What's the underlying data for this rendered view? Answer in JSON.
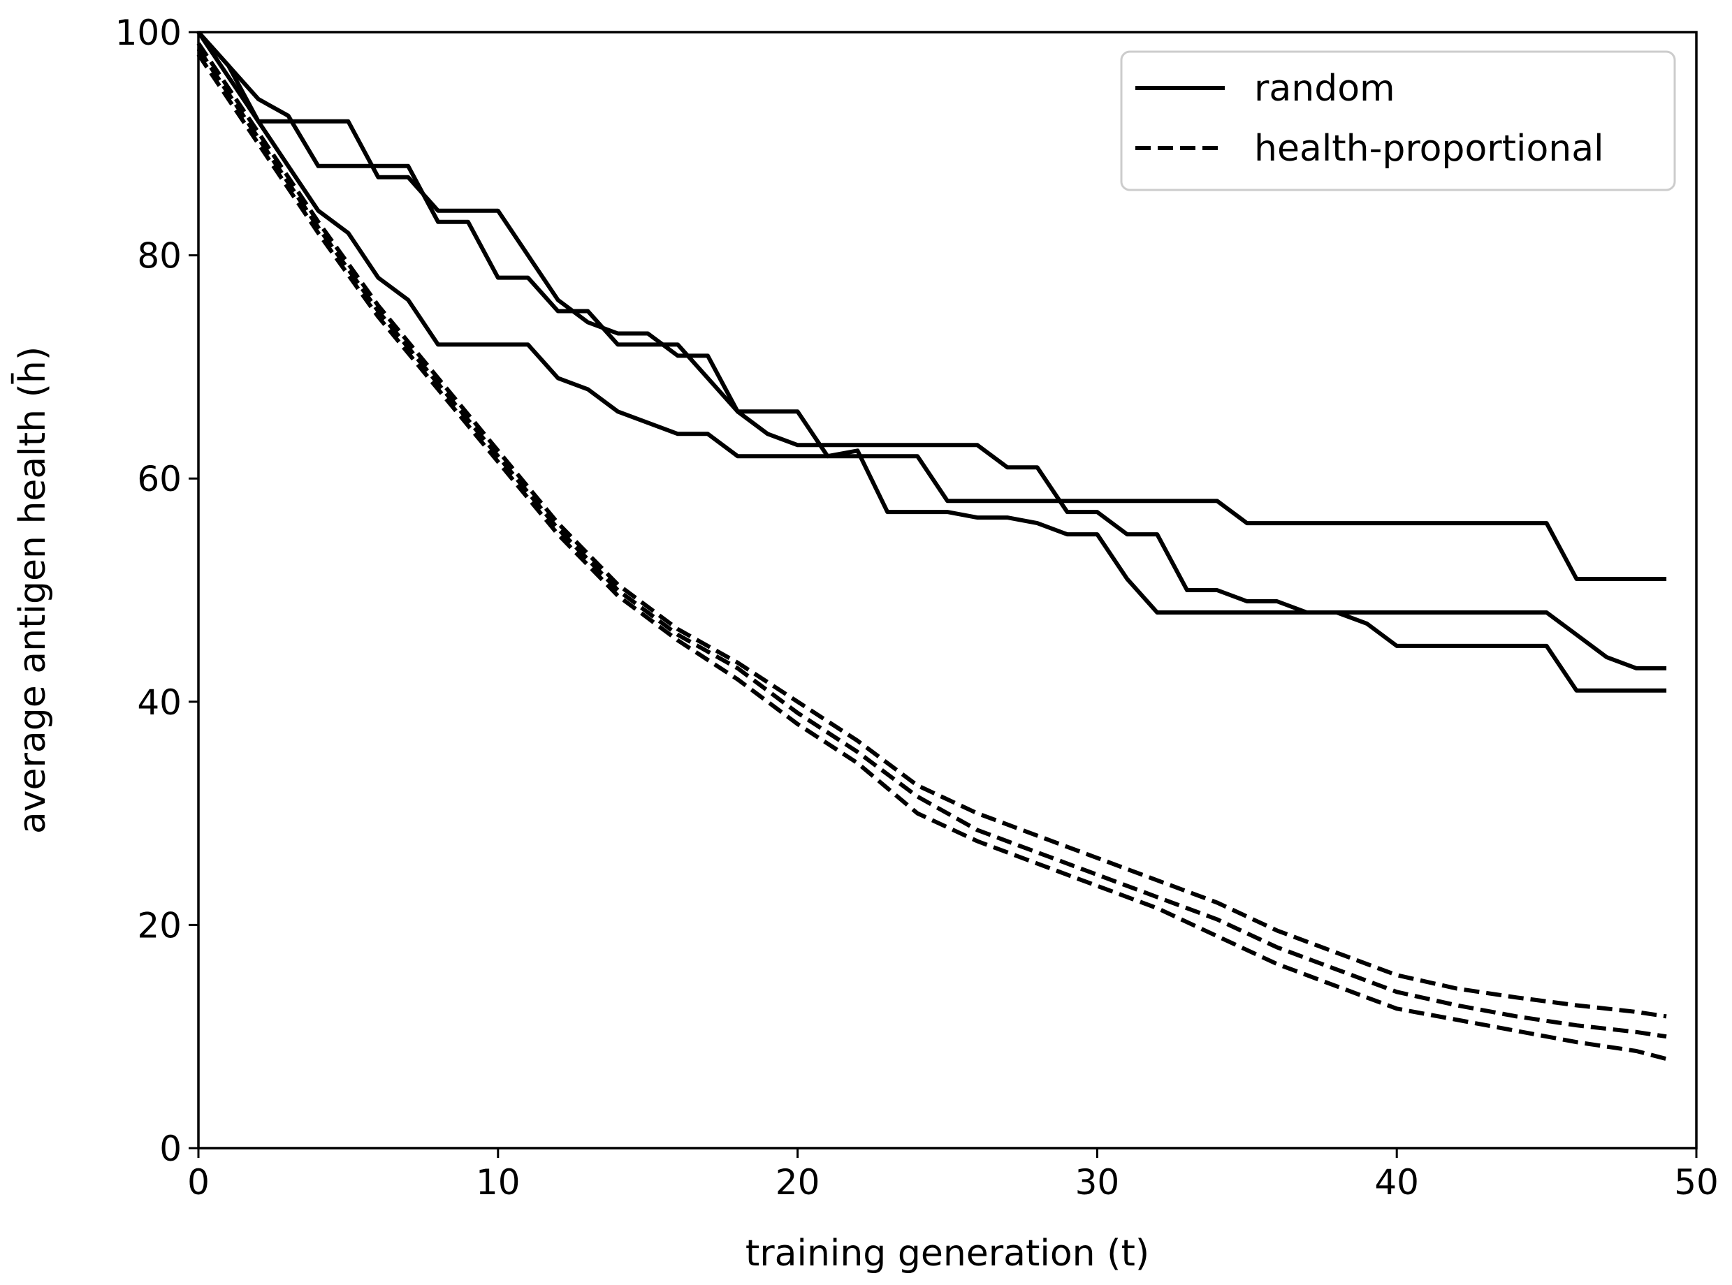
{
  "chart_data": {
    "type": "line",
    "title": "",
    "xlabel": "training generation (t)",
    "ylabel": "average antigen health (h̄)",
    "xlim": [
      0,
      50
    ],
    "ylim": [
      0,
      100
    ],
    "xticks": [
      "0",
      "10",
      "20",
      "30",
      "40",
      "50"
    ],
    "yticks": [
      "0",
      "20",
      "40",
      "60",
      "80",
      "100"
    ],
    "grid": false,
    "legend": {
      "position": "top-right",
      "entries": [
        {
          "label": "random",
          "style": "solid"
        },
        {
          "label": "health-proportional",
          "style": "dashed"
        }
      ]
    },
    "colors": {
      "line": "#000000",
      "background": "#ffffff"
    },
    "series": [
      {
        "name": "random",
        "style": "solid",
        "x": [
          0,
          1,
          2,
          3,
          4,
          5,
          6,
          7,
          8,
          9,
          10,
          11,
          12,
          13,
          14,
          15,
          16,
          17,
          18,
          19,
          20,
          21,
          22,
          23,
          24,
          25,
          26,
          27,
          28,
          29,
          30,
          31,
          32,
          33,
          34,
          35,
          36,
          37,
          38,
          39,
          40,
          41,
          42,
          43,
          44,
          45,
          46,
          47,
          48,
          49
        ],
        "y": [
          100,
          97,
          92,
          92,
          92,
          92,
          87,
          87,
          84,
          84,
          84,
          80,
          76,
          74,
          73,
          73,
          71,
          71,
          66,
          66,
          66,
          62,
          62,
          62,
          62,
          58,
          58,
          58,
          58,
          58,
          58,
          58,
          58,
          58,
          58,
          56,
          56,
          56,
          56,
          56,
          56,
          56,
          56,
          56,
          56,
          56,
          51,
          51,
          51,
          51
        ]
      },
      {
        "name": "random",
        "style": "solid",
        "x": [
          0,
          1,
          2,
          3,
          4,
          5,
          6,
          7,
          8,
          9,
          10,
          11,
          12,
          13,
          14,
          15,
          16,
          17,
          18,
          19,
          20,
          21,
          22,
          23,
          24,
          25,
          26,
          27,
          28,
          29,
          30,
          31,
          32,
          33,
          34,
          35,
          36,
          37,
          38,
          39,
          40,
          41,
          42,
          43,
          44,
          45,
          46,
          47,
          48,
          49
        ],
        "y": [
          100,
          97,
          94,
          92.5,
          88,
          88,
          88,
          88,
          83,
          83,
          78,
          78,
          75,
          75,
          72,
          72,
          72,
          69,
          66,
          64,
          63,
          63,
          63,
          63,
          63,
          63,
          63,
          61,
          61,
          57,
          57,
          55,
          55,
          50,
          50,
          49,
          49,
          48,
          48,
          48,
          48,
          48,
          48,
          48,
          48,
          48,
          46,
          44,
          43,
          43
        ]
      },
      {
        "name": "random",
        "style": "solid",
        "x": [
          0,
          1,
          2,
          3,
          4,
          5,
          6,
          7,
          8,
          9,
          10,
          11,
          12,
          13,
          14,
          15,
          16,
          17,
          18,
          19,
          20,
          21,
          22,
          23,
          24,
          25,
          26,
          27,
          28,
          29,
          30,
          31,
          32,
          33,
          34,
          35,
          36,
          37,
          38,
          39,
          40,
          41,
          42,
          43,
          44,
          45,
          46,
          47,
          48,
          49
        ],
        "y": [
          100,
          96,
          92,
          88,
          84,
          82,
          78,
          76,
          72,
          72,
          72,
          72,
          69,
          68,
          66,
          65,
          64,
          64,
          62,
          62,
          62,
          62,
          62.5,
          57,
          57,
          57,
          56.5,
          56.5,
          56,
          55,
          55,
          51,
          48,
          48,
          48,
          48,
          48,
          48,
          48,
          47,
          45,
          45,
          45,
          45,
          45,
          45,
          41,
          41,
          41,
          41
        ]
      },
      {
        "name": "health-proportional",
        "style": "dashed",
        "x": [
          0,
          2,
          4,
          6,
          8,
          10,
          12,
          14,
          16,
          18,
          20,
          22,
          24,
          26,
          28,
          30,
          32,
          34,
          36,
          38,
          40,
          42,
          44,
          46,
          48,
          49
        ],
        "y": [
          99,
          91,
          83,
          75.5,
          69,
          62.5,
          56,
          50.5,
          46.5,
          43.5,
          40,
          36.5,
          32.5,
          30,
          28,
          26,
          24,
          22,
          19.5,
          17.5,
          15.5,
          14.3,
          13.5,
          12.8,
          12.2,
          11.8
        ]
      },
      {
        "name": "health-proportional",
        "style": "dashed",
        "x": [
          0,
          2,
          4,
          6,
          8,
          10,
          12,
          14,
          16,
          18,
          20,
          22,
          24,
          26,
          28,
          30,
          32,
          34,
          36,
          38,
          40,
          42,
          44,
          46,
          48,
          49
        ],
        "y": [
          98.5,
          90.5,
          82.5,
          75,
          68.5,
          62,
          55.5,
          50,
          46,
          43,
          39,
          35.5,
          31.5,
          28.5,
          26.5,
          24.5,
          22.5,
          20.5,
          18,
          16,
          14,
          12.8,
          11.8,
          11,
          10.4,
          10
        ]
      },
      {
        "name": "health-proportional",
        "style": "dashed",
        "x": [
          0,
          2,
          4,
          6,
          8,
          10,
          12,
          14,
          16,
          18,
          20,
          22,
          24,
          26,
          28,
          30,
          32,
          34,
          36,
          38,
          40,
          42,
          44,
          46,
          48,
          49
        ],
        "y": [
          98,
          90,
          82,
          74.5,
          68,
          61.5,
          55,
          49.5,
          45.5,
          42,
          38,
          34.5,
          30,
          27.5,
          25.5,
          23.5,
          21.5,
          19,
          16.5,
          14.5,
          12.5,
          11.5,
          10.5,
          9.5,
          8.7,
          8
        ]
      }
    ]
  }
}
